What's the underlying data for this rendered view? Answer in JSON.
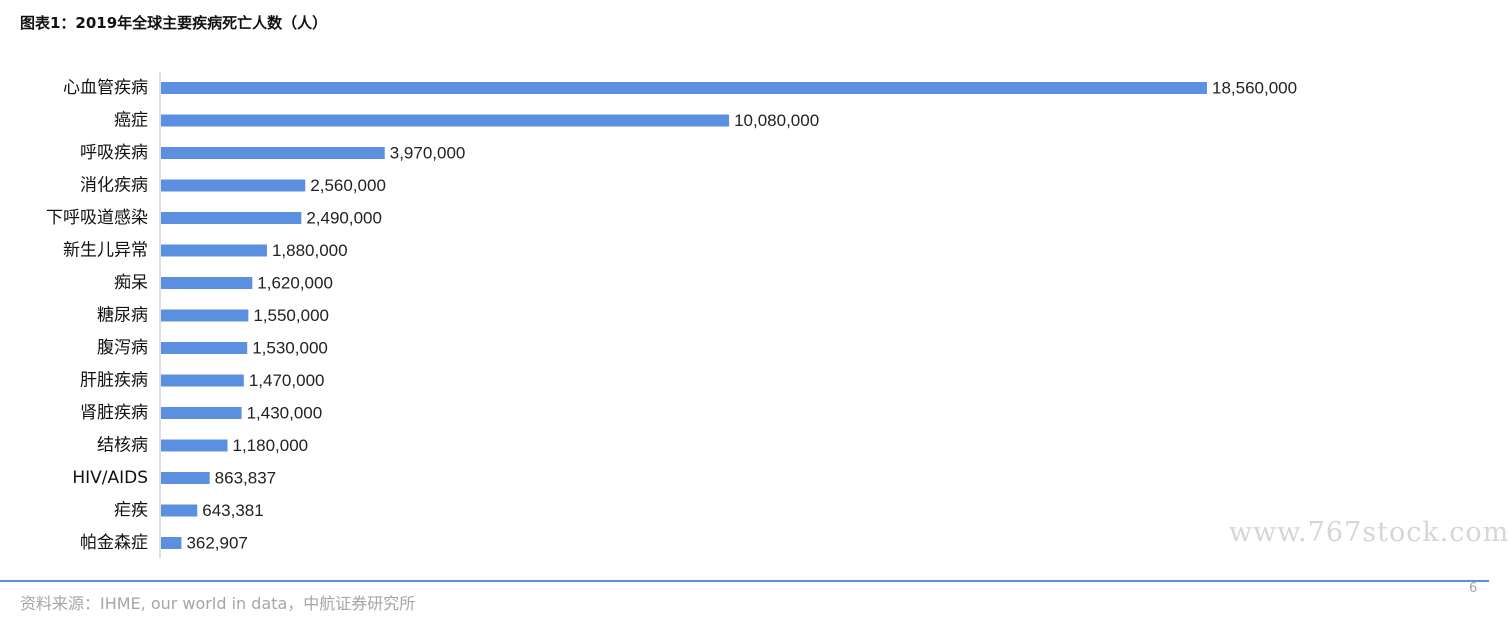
{
  "header": {
    "title": "图表1：2019年全球主要疾病死亡人数（人）"
  },
  "chart_data": {
    "type": "bar",
    "orientation": "horizontal",
    "categories": [
      "心血管疾病",
      "癌症",
      "呼吸疾病",
      "消化疾病",
      "下呼吸道感染",
      "新生儿异常",
      "痴呆",
      "糖尿病",
      "腹泻病",
      "肝脏疾病",
      "肾脏疾病",
      "结核病",
      "HIV/AIDS",
      "疟疾",
      "帕金森症"
    ],
    "values": [
      18560000,
      10080000,
      3970000,
      2560000,
      2490000,
      1880000,
      1620000,
      1550000,
      1530000,
      1470000,
      1430000,
      1180000,
      863837,
      643381,
      362907
    ],
    "value_labels": [
      "18,560,000",
      "10,080,000",
      "3,970,000",
      "2,560,000",
      "2,490,000",
      "1,880,000",
      "1,620,000",
      "1,550,000",
      "1,530,000",
      "1,470,000",
      "1,430,000",
      "1,180,000",
      "863,837",
      "643,381",
      "362,907"
    ],
    "xlim": [
      0,
      18560000
    ],
    "grid": false,
    "legend": "none",
    "bar_color": "#5b8fe0"
  },
  "watermark": {
    "text": "www.767stock.com",
    "color": "#d6d6d6"
  },
  "footer": {
    "source": "资料来源：IHME, our world in data，中航证券研究所",
    "page_number": "6",
    "text_color": "#a6a6a6",
    "rule_color": "#5b8fd6"
  }
}
